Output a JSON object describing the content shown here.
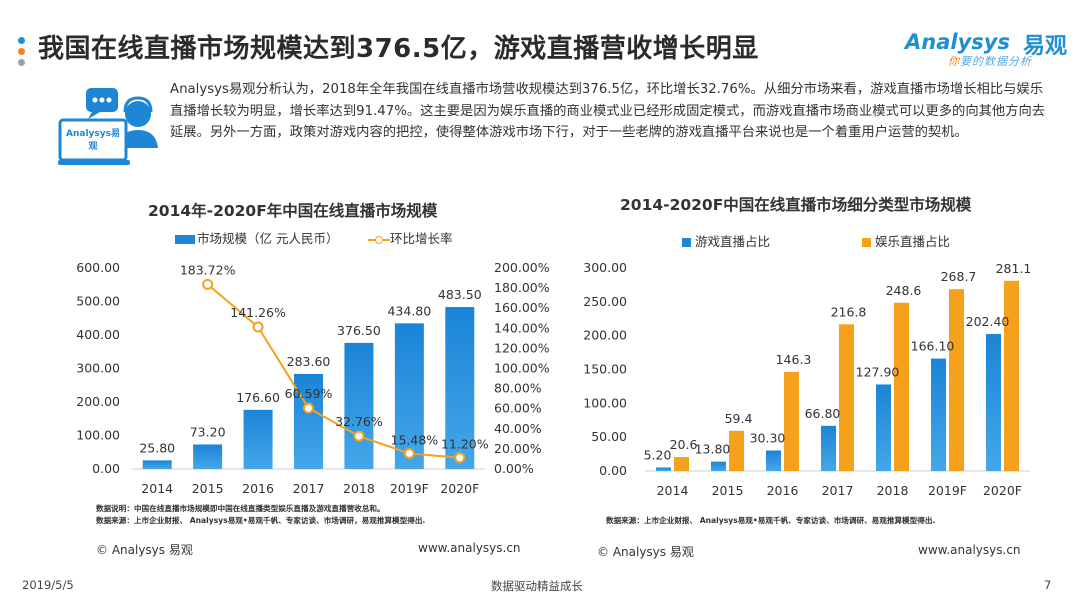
{
  "page": {
    "title": "我国在线直播市场规模达到376.5亿，游戏直播营收增长明显",
    "logo_main": "Analysys",
    "logo_cn": "易观",
    "logo_tagline_hl": "你",
    "logo_tagline": "要的数据分析",
    "icon_label": "Analysys易观",
    "description": "Analysys易观分析认为，2018年全年我国在线直播市场营收规模达到376.5亿，环比增长32.76%。从细分市场来看，游戏直播市场增长相比与娱乐直播增长较为明显，增长率达到91.47%。这主要是因为娱乐直播的商业模式业已经形成固定模式，而游戏直播市场商业模式可以更多的向其他方向去延展。另外一方面，政策对游戏内容的把控，使得整体游戏市场下行，对于一些老牌的游戏直播平台来说也是一个着重用户运营的契机。",
    "date": "2019/5/5",
    "footer_center": "数据驱动精益成长",
    "page_number": "7"
  },
  "colors": {
    "blue": "#1d87d6",
    "orange": "#f6a11b",
    "title_dot_blue": "#1e8fd6",
    "title_dot_orange": "#f0851e"
  },
  "left_panel": {
    "note_line1": "数据说明：中国在线直播市场规模即中国在线直播类型娱乐直播及游戏直播营收总和。",
    "note_line2": "数据来源：上市企业财报、 Analysys易观•易观千帆、专家访谈、市场调研，易观推算模型得出.",
    "copyright": "© Analysys 易观",
    "website": "www.analysys.cn"
  },
  "right_panel": {
    "note_line1": "数据来源：上市企业财报、 Analysys易观•易观千帆、专家访谈、市场调研、易观推算模型得出.",
    "copyright": "© Analysys 易观",
    "website": "www.analysys.cn"
  },
  "chart_data": [
    {
      "type": "bar",
      "title": "2014年-2020F年中国在线直播市场规模",
      "categories": [
        "2014",
        "2015",
        "2016",
        "2017",
        "2018",
        "2019F",
        "2020F"
      ],
      "series": [
        {
          "name": "市场规模（亿 元人民币）",
          "type": "bar",
          "axis": "left",
          "values": [
            25.8,
            73.2,
            176.6,
            283.6,
            376.5,
            434.8,
            483.5
          ],
          "labels": [
            "25.80",
            "73.20",
            "176.60",
            "283.60",
            "376.50",
            "434.80",
            "483.50"
          ]
        },
        {
          "name": "环比增长率",
          "type": "line",
          "axis": "right",
          "values": [
            null,
            183.72,
            141.26,
            60.59,
            32.76,
            15.48,
            11.2
          ],
          "labels": [
            "",
            "183.72%",
            "141.26%",
            "60.59%",
            "32.76%",
            "15.48%",
            "11.20%"
          ]
        }
      ],
      "ylim": [
        0,
        600
      ],
      "yticks": [
        "0.00",
        "100.00",
        "200.00",
        "300.00",
        "400.00",
        "500.00",
        "600.00"
      ],
      "y2lim": [
        0,
        200
      ],
      "y2ticks": [
        "0.00%",
        "20.00%",
        "40.00%",
        "60.00%",
        "80.00%",
        "100.00%",
        "120.00%",
        "140.00%",
        "160.00%",
        "180.00%",
        "200.00%"
      ],
      "legend": "top"
    },
    {
      "type": "bar",
      "title": "2014-2020F中国在线直播市场细分类型市场规模",
      "categories": [
        "2014",
        "2015",
        "2016",
        "2017",
        "2018",
        "2019F",
        "2020F"
      ],
      "series": [
        {
          "name": "游戏直播占比",
          "values": [
            5.2,
            13.8,
            30.3,
            66.8,
            127.9,
            166.1,
            202.4
          ],
          "labels": [
            "5.20",
            "13.80",
            "30.30",
            "66.80",
            "127.90",
            "166.10",
            "202.40"
          ]
        },
        {
          "name": "娱乐直播占比",
          "values": [
            20.6,
            59.4,
            146.3,
            216.8,
            248.6,
            268.7,
            281.1
          ],
          "labels": [
            "20.6",
            "59.4",
            "146.3",
            "216.8",
            "248.6",
            "268.7",
            "281.1"
          ]
        }
      ],
      "ylim": [
        0,
        300
      ],
      "yticks": [
        "0.00",
        "50.00",
        "100.00",
        "150.00",
        "200.00",
        "250.00",
        "300.00"
      ],
      "legend": "top"
    }
  ]
}
